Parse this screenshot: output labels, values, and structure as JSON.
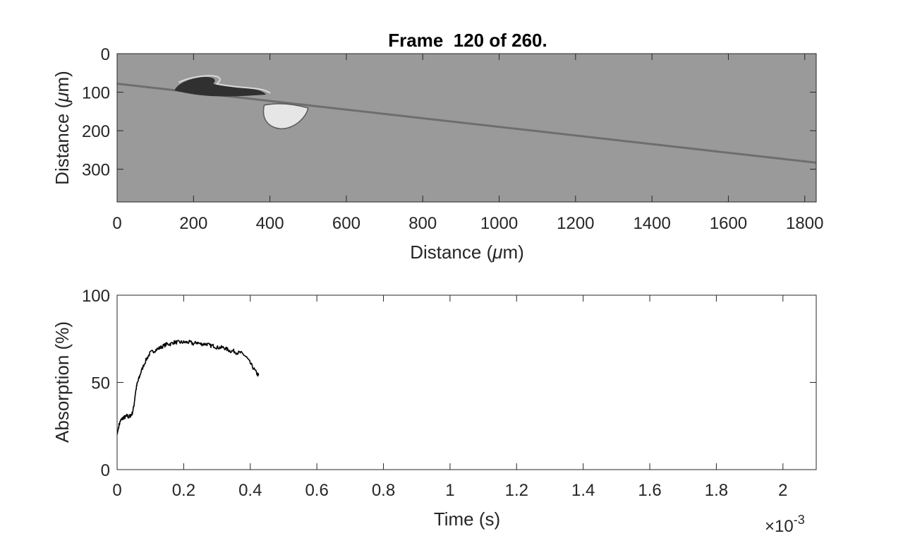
{
  "chart_data": [
    {
      "type": "heatmap",
      "title": "Frame  120 of 260.",
      "xlabel_prefix": "Distance (",
      "xlabel_mu": "μ",
      "xlabel_suffix": "m)",
      "ylabel_prefix": "Distance (",
      "ylabel_mu": "μ",
      "ylabel_suffix": "m)",
      "xlim": [
        0,
        1830
      ],
      "ylim": [
        0,
        385
      ],
      "y_reversed": true,
      "xticks": [
        0,
        200,
        400,
        600,
        800,
        1000,
        1200,
        1400,
        1600,
        1800
      ],
      "yticks": [
        0,
        100,
        200,
        300
      ],
      "background_color": "#9a9a9a",
      "features": {
        "interface_line": {
          "x": [
            0,
            1830
          ],
          "y": [
            78,
            283
          ],
          "color": "#6e6e6e"
        },
        "dark_region": {
          "x_range": [
            150,
            390
          ],
          "y_range": [
            60,
            110
          ],
          "color": "#303030"
        },
        "bright_region": {
          "x_range": [
            385,
            500
          ],
          "y_range": [
            130,
            195
          ],
          "color": "#e6e6e6"
        }
      }
    },
    {
      "type": "line",
      "xlabel": "Time (s)",
      "ylabel": "Absorption (%)",
      "xlim": [
        0,
        0.0021
      ],
      "ylim": [
        0,
        100
      ],
      "xticks": [
        0,
        0.2,
        0.4,
        0.6,
        0.8,
        1,
        1.2,
        1.4,
        1.6,
        1.8,
        2
      ],
      "yticks": [
        0,
        50,
        100
      ],
      "x_multiplier_base": "×10",
      "x_multiplier_exp": "-3",
      "line_color": "#000000",
      "x_ms": [
        0,
        0.005,
        0.01,
        0.015,
        0.02,
        0.025,
        0.03,
        0.035,
        0.04,
        0.045,
        0.05,
        0.055,
        0.06,
        0.065,
        0.07,
        0.08,
        0.09,
        0.1,
        0.11,
        0.12,
        0.13,
        0.14,
        0.15,
        0.16,
        0.17,
        0.18,
        0.19,
        0.2,
        0.21,
        0.22,
        0.23,
        0.24,
        0.25,
        0.26,
        0.27,
        0.28,
        0.29,
        0.3,
        0.31,
        0.32,
        0.33,
        0.34,
        0.35,
        0.36,
        0.37,
        0.38,
        0.39,
        0.4,
        0.41,
        0.42,
        0.425
      ],
      "y": [
        20,
        25,
        28,
        29,
        30,
        30,
        31,
        30,
        31,
        32,
        36,
        44,
        49,
        52,
        55,
        60,
        64,
        67,
        68,
        69,
        70,
        71,
        72,
        72,
        73,
        73,
        73,
        73,
        73,
        73,
        72,
        73,
        72,
        72,
        72,
        71,
        71,
        70,
        70,
        70,
        69,
        68,
        68,
        67,
        67,
        66,
        64,
        61,
        58,
        55,
        54
      ]
    }
  ]
}
